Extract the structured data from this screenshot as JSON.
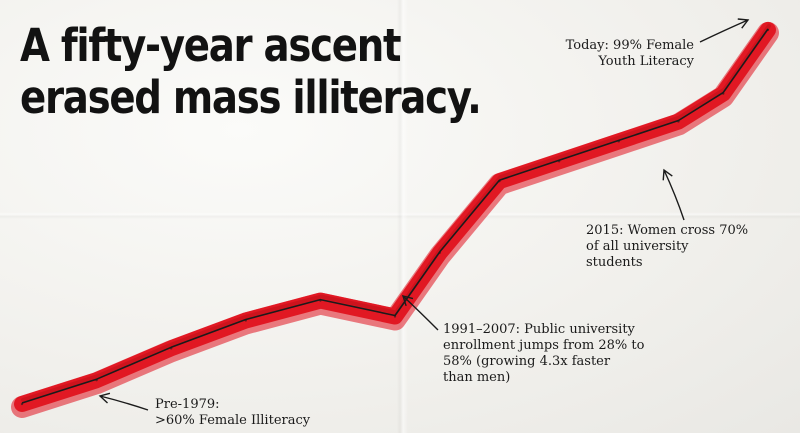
{
  "chart_data": {
    "type": "line",
    "title": [
      "A fifty-year ascent",
      "erased mass illiteracy."
    ],
    "xlabel": "",
    "ylabel": "",
    "grid": false,
    "legend": "none",
    "series": [
      {
        "points": [
          [
            0,
            2
          ],
          [
            5,
            8
          ],
          [
            10,
            16
          ],
          [
            15,
            23
          ],
          [
            20,
            28
          ],
          [
            25,
            24
          ],
          [
            28,
            40
          ],
          [
            32,
            58
          ],
          [
            36,
            63
          ],
          [
            40,
            68
          ],
          [
            44,
            73
          ],
          [
            47,
            80
          ],
          [
            50,
            96
          ]
        ]
      }
    ],
    "annotations": [
      {
        "id": "today",
        "lines": [
          "Today: 99% Female",
          "Youth Literacy"
        ]
      },
      {
        "id": "2015",
        "lines": [
          "2015: Women cross 70%",
          "of all university",
          "students"
        ]
      },
      {
        "id": "1991",
        "lines": [
          "1991–2007: Public university",
          "enrollment jumps from 28% to",
          "58% (growing 4.3x faster",
          "than men)"
        ]
      },
      {
        "id": "1979",
        "lines": [
          "Pre-1979:",
          ">60% Female Illiteracy"
        ]
      }
    ]
  },
  "colors": {
    "line": "#e0131f",
    "trend": "#1b1b1b",
    "text": "#121212"
  }
}
